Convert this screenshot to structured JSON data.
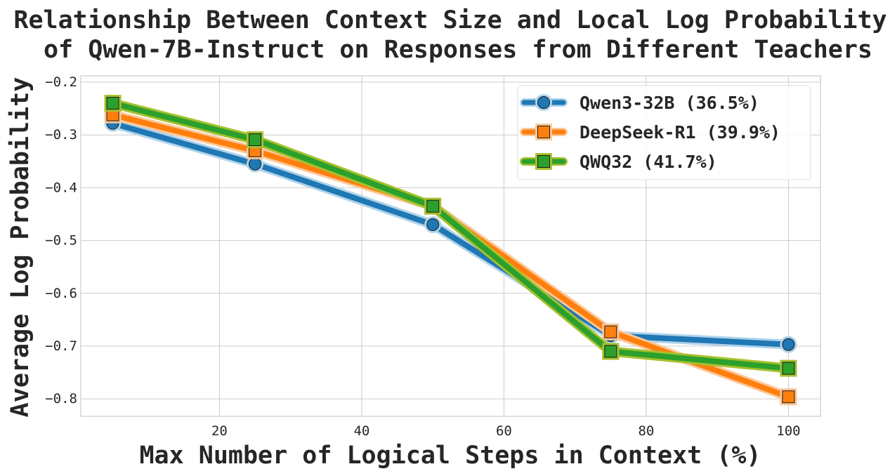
{
  "chart_data": {
    "type": "line",
    "title": [
      "Relationship Between Context Size and Local Log Probability",
      "of Qwen-7B-Instruct on Responses from Different Teachers"
    ],
    "xlabel": "Max Number of Logical Steps in Context (%)",
    "ylabel": "Average Log Probability",
    "xlim": [
      0.5,
      104.5
    ],
    "ylim": [
      -0.833,
      -0.188
    ],
    "xticks": [
      20,
      40,
      60,
      80,
      100
    ],
    "xtick_labels": [
      "20",
      "40",
      "60",
      "80",
      "100"
    ],
    "yticks": [
      -0.2,
      -0.3,
      -0.4,
      -0.5,
      -0.6,
      -0.7,
      -0.8
    ],
    "ytick_labels": [
      "−0.2",
      "−0.3",
      "−0.4",
      "−0.5",
      "−0.6",
      "−0.7",
      "−0.8"
    ],
    "grid": true,
    "legend_position": "top-right",
    "x": [
      5,
      25,
      50,
      75,
      100
    ],
    "series": [
      {
        "name": "Qwen3-32B (36.5%)",
        "values": [
          -0.278,
          -0.355,
          -0.47,
          -0.68,
          -0.697
        ],
        "color": "#1f77b4",
        "glow": "#aed3ea",
        "marker": "circle"
      },
      {
        "name": "DeepSeek-R1 (39.9%)",
        "values": [
          -0.262,
          -0.33,
          -0.435,
          -0.673,
          -0.796
        ],
        "color": "#ff7f0e",
        "glow": "#fcc89a",
        "marker": "square"
      },
      {
        "name": "QWQ32 (41.7%)",
        "values": [
          -0.24,
          -0.309,
          -0.435,
          -0.71,
          -0.742
        ],
        "color": "#2ca02c",
        "glow": "#a6c12e",
        "marker": "square"
      }
    ]
  }
}
